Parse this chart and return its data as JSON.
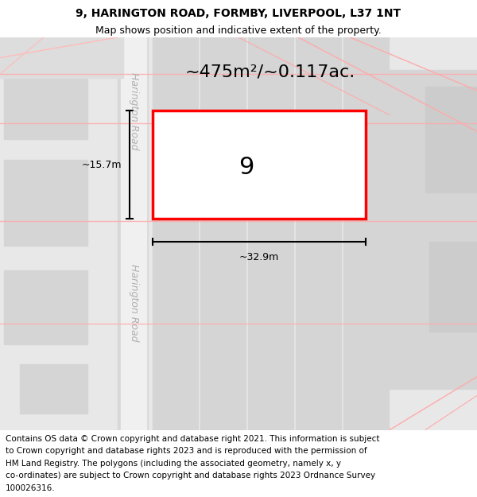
{
  "title_line1": "9, HARINGTON ROAD, FORMBY, LIVERPOOL, L37 1NT",
  "title_line2": "Map shows position and indicative extent of the property.",
  "footer_lines": [
    "Contains OS data © Crown copyright and database right 2021. This information is subject",
    "to Crown copyright and database rights 2023 and is reproduced with the permission of",
    "HM Land Registry. The polygons (including the associated geometry, namely x, y",
    "co-ordinates) are subject to Crown copyright and database rights 2023 Ordnance Survey",
    "100026316."
  ],
  "street_label": "Harington Road",
  "area_text": "~475m²/~0.117ac.",
  "plot_number": "9",
  "dim_width": "~32.9m",
  "dim_height": "~15.7m",
  "title_fontsize": 10,
  "subtitle_fontsize": 9,
  "footer_fontsize": 7.5,
  "plot_outline_color": "#ff0000",
  "road_line_color": "#ffaaaa",
  "bg_color": "#e8e8e8",
  "block_color": "#d5d5d5",
  "road_fill_color": "#f0f0f0"
}
